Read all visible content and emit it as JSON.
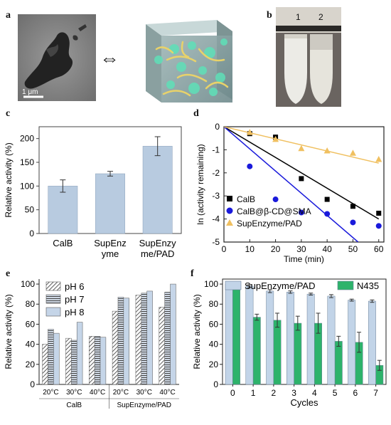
{
  "panel_labels": {
    "a": "a",
    "b": "b",
    "c": "c",
    "d": "d",
    "e": "e",
    "f": "f"
  },
  "panel_a": {
    "scale_bar": "1 μm",
    "arrow": "⇔"
  },
  "panel_b": {
    "tube_labels": [
      "1",
      "2"
    ]
  },
  "chart_data": [
    {
      "panel": "c",
      "type": "bar",
      "categories": [
        "CalB",
        "SupEnzyme",
        "SupEnzyme/PAD"
      ],
      "category_label_lines": [
        [
          "CalB"
        ],
        [
          "SupEnz",
          "yme"
        ],
        [
          "SupEnzy",
          "me/PAD"
        ]
      ],
      "values": [
        100,
        126,
        184
      ],
      "errors": [
        13,
        5,
        20
      ],
      "ylabel": "Relative activity (%)",
      "ylim": [
        0,
        225
      ],
      "yticks": [
        0,
        50,
        100,
        150,
        200
      ],
      "color": "#b8cbe0"
    },
    {
      "panel": "d",
      "type": "scatter",
      "xlabel": "Time (min)",
      "ylabel": "ln (activity remaining)",
      "xlim": [
        0,
        62
      ],
      "ylim": [
        -5,
        0
      ],
      "xticks": [
        0,
        10,
        20,
        30,
        40,
        50,
        60
      ],
      "yticks": [
        0,
        -1,
        -2,
        -3,
        -4,
        -5
      ],
      "legend_position": "bottom-left",
      "series": [
        {
          "name": "CalB",
          "marker": "square",
          "color": "#000000",
          "x": [
            0,
            10,
            20,
            30,
            40,
            50,
            60
          ],
          "y": [
            0,
            -0.3,
            -0.45,
            -2.25,
            -3.15,
            -3.45,
            -3.75
          ],
          "fit": [
            [
              0,
              0
            ],
            [
              60,
              -4.0
            ]
          ]
        },
        {
          "name": "CalB@β-CD@SMA",
          "marker": "circle",
          "color": "#1a1adb",
          "x": [
            0,
            10,
            20,
            30,
            40,
            50,
            60
          ],
          "y": [
            0,
            -1.72,
            -3.15,
            -3.72,
            -3.78,
            -4.15,
            -4.3
          ],
          "fit": [
            [
              0,
              0
            ],
            [
              52,
              -5.0
            ]
          ]
        },
        {
          "name": "SupEnzyme/PAD",
          "marker": "triangle",
          "color": "#f0c060",
          "x": [
            0,
            10,
            20,
            30,
            40,
            50,
            60
          ],
          "y": [
            0,
            -0.25,
            -0.55,
            -0.95,
            -1.05,
            -1.15,
            -1.42
          ],
          "fit": [
            [
              0,
              0
            ],
            [
              60,
              -1.58
            ]
          ]
        }
      ]
    },
    {
      "panel": "e",
      "type": "bar",
      "ylabel": "Relative activity (%)",
      "ylim": [
        0,
        105
      ],
      "yticks": [
        0,
        20,
        40,
        60,
        80,
        100
      ],
      "legend_position": "top-left",
      "temperature_labels": [
        "20°C",
        "30°C",
        "40°C",
        "20°C",
        "30°C",
        "40°C"
      ],
      "groups": [
        "CalB",
        "SupEnzyme/PAD"
      ],
      "series": [
        {
          "name": "pH 6",
          "pattern": "diag",
          "values": [
            40,
            46,
            48,
            73,
            89,
            77
          ]
        },
        {
          "name": "pH 7",
          "pattern": "horiz",
          "values": [
            55,
            44,
            48,
            87,
            91,
            92
          ]
        },
        {
          "name": "pH 8",
          "pattern": "solid",
          "values": [
            51,
            62,
            47,
            86,
            93,
            100
          ]
        }
      ]
    },
    {
      "panel": "f",
      "type": "bar",
      "xlabel": "Cycles",
      "ylabel": "Relative activity (%)",
      "ylim": [
        0,
        105
      ],
      "yticks": [
        0,
        20,
        40,
        60,
        80,
        100
      ],
      "categories": [
        "0",
        "1",
        "2",
        "3",
        "4",
        "5",
        "6",
        "7"
      ],
      "legend_position": "top",
      "series": [
        {
          "name": "SupEnzyme/PAD",
          "color": "#c2d4e8",
          "values": [
            100,
            98,
            93,
            92,
            90,
            88,
            84,
            83
          ],
          "errors": [
            1,
            1.5,
            1.5,
            1.2,
            1,
            1.5,
            1,
            1.2
          ]
        },
        {
          "name": "N435",
          "color": "#2db36b",
          "values": [
            99,
            67,
            64,
            61,
            61,
            43,
            42,
            19
          ],
          "errors": [
            1.5,
            3,
            7,
            7,
            10,
            5,
            10,
            5
          ]
        }
      ]
    }
  ]
}
